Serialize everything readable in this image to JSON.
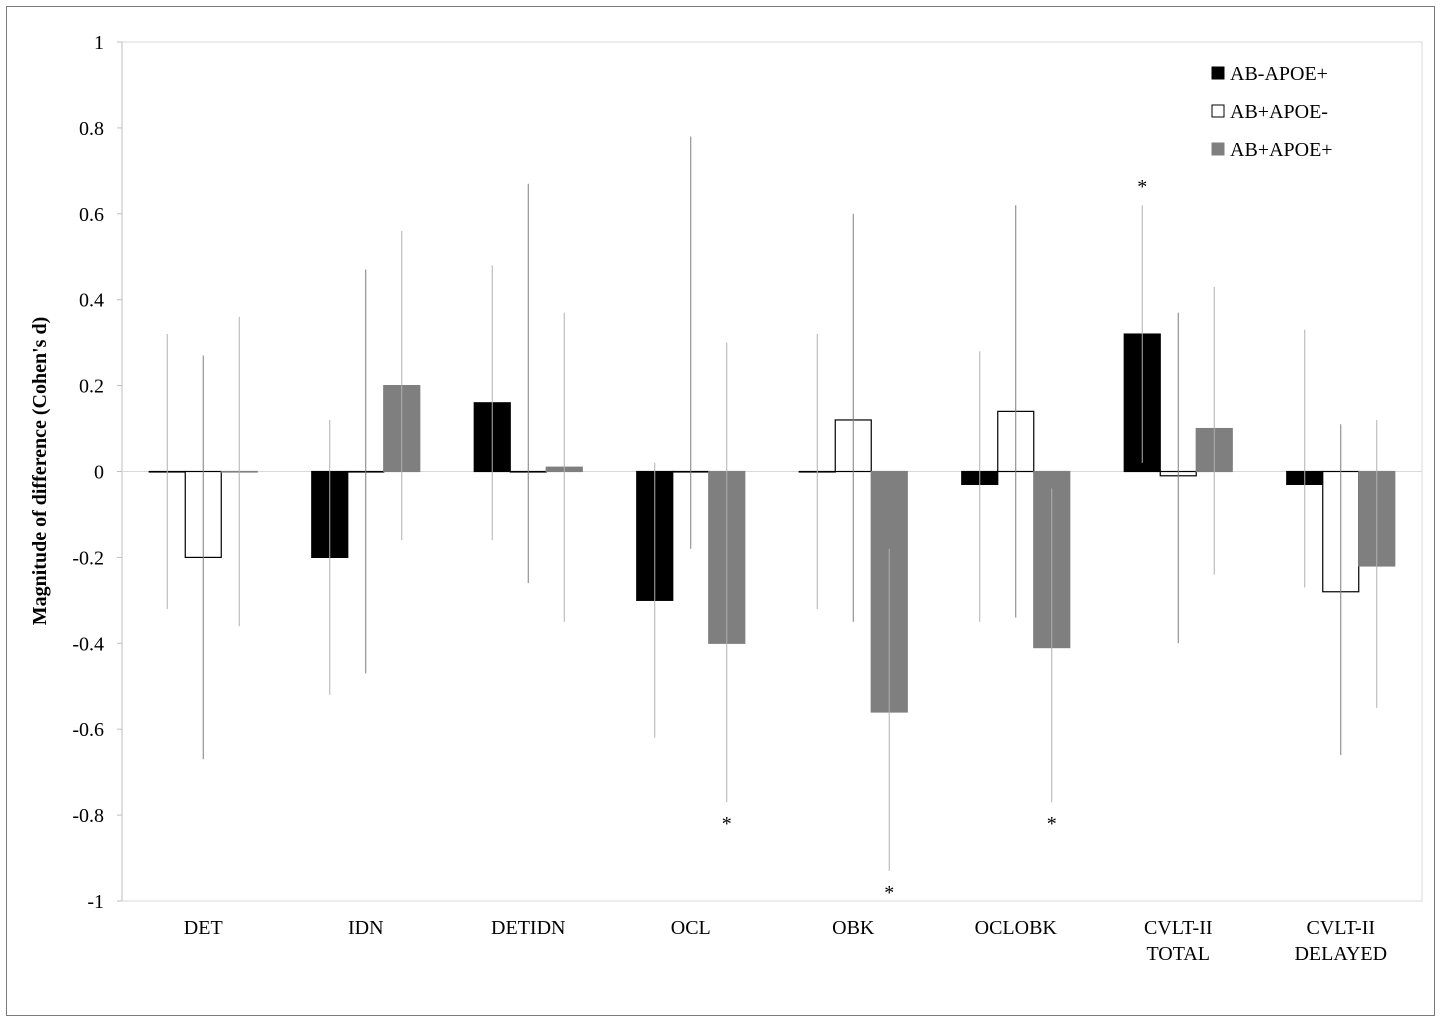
{
  "chart_data": {
    "type": "bar",
    "ylabel": "Magnitude of difference (Cohen's d)",
    "ylim": [
      -1,
      1
    ],
    "yticks": [
      "1",
      "0.8",
      "0.6",
      "0.4",
      "0.2",
      "0",
      "-0.2",
      "-0.4",
      "-0.6",
      "-0.8",
      "-1"
    ],
    "categories": [
      [
        "DET"
      ],
      [
        "IDN"
      ],
      [
        "DETIDN"
      ],
      [
        "OCL"
      ],
      [
        "OBK"
      ],
      [
        "OCLOBK"
      ],
      [
        "CVLT-II",
        "TOTAL"
      ],
      [
        "CVLT-II",
        "DELAYED"
      ]
    ],
    "series": [
      {
        "name": "AB-APOE+",
        "color": "#000000",
        "fill": "#000000",
        "values": [
          0.0,
          -0.2,
          0.16,
          -0.3,
          0.0,
          -0.03,
          0.32,
          -0.03
        ],
        "err_lo": [
          -0.32,
          -0.52,
          -0.16,
          -0.62,
          -0.32,
          -0.35,
          0.02,
          -0.27
        ],
        "err_hi": [
          0.32,
          0.12,
          0.48,
          0.02,
          0.32,
          0.28,
          0.62,
          0.33
        ],
        "sig": [
          false,
          false,
          false,
          false,
          false,
          false,
          true,
          false
        ]
      },
      {
        "name": "AB+APOE-",
        "color": "#000000",
        "fill": "#ffffff",
        "values": [
          -0.2,
          0.0,
          0.0,
          0.0,
          0.12,
          0.14,
          -0.01,
          -0.28
        ],
        "err_lo": [
          -0.67,
          -0.47,
          -0.26,
          -0.18,
          -0.35,
          -0.34,
          -0.4,
          -0.66
        ],
        "err_hi": [
          0.27,
          0.47,
          0.67,
          0.78,
          0.6,
          0.62,
          0.37,
          0.11
        ],
        "sig": [
          false,
          false,
          false,
          false,
          false,
          false,
          false,
          false
        ]
      },
      {
        "name": "AB+APOE+",
        "color": "#7f7f7f",
        "fill": "#7f7f7f",
        "values": [
          0.0,
          0.2,
          0.01,
          -0.4,
          -0.56,
          -0.41,
          0.1,
          -0.22
        ],
        "err_lo": [
          -0.36,
          -0.16,
          -0.35,
          -0.77,
          -0.93,
          -0.77,
          -0.24,
          -0.55
        ],
        "err_hi": [
          0.36,
          0.56,
          0.37,
          0.3,
          -0.18,
          -0.04,
          0.43,
          0.12
        ],
        "sig": [
          false,
          false,
          false,
          true,
          true,
          true,
          false,
          false
        ]
      }
    ],
    "legend": "top-right",
    "sig_marker": "*"
  }
}
